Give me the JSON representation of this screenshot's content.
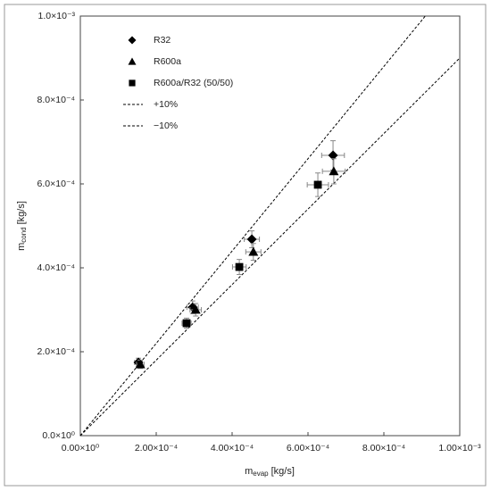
{
  "chart_data": {
    "type": "scatter",
    "xlabel": {
      "main": "m",
      "sub": "evap",
      "unit": "[kg/s]"
    },
    "ylabel": {
      "main": "m",
      "sub": "cond",
      "unit": "[kg/s]"
    },
    "xlim": [
      0,
      0.001
    ],
    "ylim": [
      0,
      0.001
    ],
    "xticks": [
      {
        "value": 0,
        "label": "0.00×10⁰"
      },
      {
        "value": 0.0002,
        "label": "2.00×10⁻⁴"
      },
      {
        "value": 0.0004,
        "label": "4.00×10⁻⁴"
      },
      {
        "value": 0.0006,
        "label": "6.00×10⁻⁴"
      },
      {
        "value": 0.0008,
        "label": "8.00×10⁻⁴"
      },
      {
        "value": 0.001,
        "label": "1.00×10⁻³"
      }
    ],
    "yticks": [
      {
        "value": 0,
        "label": "0.0×10⁰"
      },
      {
        "value": 0.0002,
        "label": "2.0×10⁻⁴"
      },
      {
        "value": 0.0004,
        "label": "4.0×10⁻⁴"
      },
      {
        "value": 0.0006,
        "label": "6.0×10⁻⁴"
      },
      {
        "value": 0.0008,
        "label": "8.0×10⁻⁴"
      },
      {
        "value": 0.001,
        "label": "1.0×10⁻³"
      }
    ],
    "series": [
      {
        "name": "R32",
        "marker": "diamond",
        "color": "#000000",
        "x": [
          0.000153,
          0.000296,
          0.000452,
          0.000666
        ],
        "values": [
          0.0001745,
          0.000306,
          0.000468,
          0.000668
        ],
        "xerr": [
          1e-05,
          1.5e-05,
          2e-05,
          3e-05
        ],
        "yerr": [
          1e-05,
          1.5e-05,
          2e-05,
          3.5e-05
        ]
      },
      {
        "name": "R600a",
        "marker": "triangle",
        "color": "#000000",
        "x": [
          0.000158,
          0.000304,
          0.000456,
          0.000668
        ],
        "values": [
          0.00017,
          0.0003,
          0.000438,
          0.00063
        ],
        "xerr": [
          1e-05,
          1.5e-05,
          2e-05,
          3e-05
        ],
        "yerr": [
          1e-05,
          1.5e-05,
          2e-05,
          3e-05
        ]
      },
      {
        "name": "R600a/R32 (50/50)",
        "marker": "square",
        "color": "#000000",
        "x": [
          0.00028,
          0.000419,
          0.000626
        ],
        "values": [
          0.000268,
          0.000402,
          0.000598
        ],
        "xerr": [
          1.2e-05,
          1.8e-05,
          2.8e-05
        ],
        "yerr": [
          1.2e-05,
          1.8e-05,
          2.8e-05
        ]
      }
    ],
    "reference_lines": [
      {
        "name": "+10%",
        "factor": 1.1
      },
      {
        "name": "−10%",
        "factor": 0.9
      }
    ]
  }
}
